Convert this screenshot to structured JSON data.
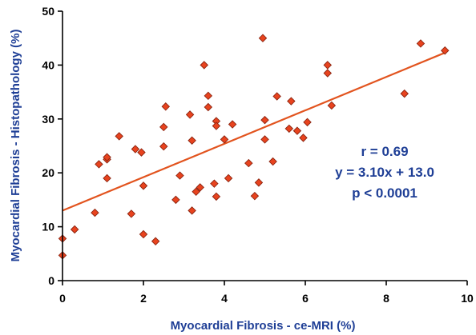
{
  "chart_data": {
    "type": "scatter",
    "title": "",
    "xlabel": "Myocardial Fibrosis - ce-MRI (%)",
    "ylabel": "Myocardial Fibrosis - Histopathology (%)",
    "xlim": [
      0,
      10
    ],
    "ylim": [
      0,
      50
    ],
    "x_ticks": [
      0,
      2,
      4,
      6,
      8,
      10
    ],
    "y_ticks": [
      0,
      10,
      20,
      30,
      40,
      50
    ],
    "grid": false,
    "series": [
      {
        "points": [
          [
            0.0,
            4.7
          ],
          [
            0.0,
            7.8
          ],
          [
            0.3,
            9.5
          ],
          [
            0.8,
            12.6
          ],
          [
            0.9,
            21.6
          ],
          [
            1.1,
            22.5
          ],
          [
            1.1,
            22.9
          ],
          [
            1.1,
            19.0
          ],
          [
            1.4,
            26.8
          ],
          [
            1.7,
            12.4
          ],
          [
            1.8,
            24.4
          ],
          [
            1.95,
            23.8
          ],
          [
            2.0,
            17.6
          ],
          [
            2.0,
            8.6
          ],
          [
            2.3,
            7.3
          ],
          [
            2.5,
            24.9
          ],
          [
            2.5,
            28.5
          ],
          [
            2.55,
            32.3
          ],
          [
            2.8,
            15.0
          ],
          [
            2.9,
            19.5
          ],
          [
            3.15,
            30.8
          ],
          [
            3.2,
            26.0
          ],
          [
            3.2,
            13.0
          ],
          [
            3.3,
            16.5
          ],
          [
            3.4,
            17.3
          ],
          [
            3.5,
            40.0
          ],
          [
            3.6,
            32.2
          ],
          [
            3.6,
            34.3
          ],
          [
            3.75,
            18.0
          ],
          [
            3.8,
            29.6
          ],
          [
            3.8,
            28.7
          ],
          [
            3.8,
            15.6
          ],
          [
            4.0,
            26.2
          ],
          [
            4.1,
            19.0
          ],
          [
            4.2,
            29.0
          ],
          [
            4.6,
            21.8
          ],
          [
            4.75,
            15.7
          ],
          [
            4.85,
            18.2
          ],
          [
            4.95,
            45.0
          ],
          [
            5.0,
            29.8
          ],
          [
            5.0,
            26.2
          ],
          [
            5.2,
            22.1
          ],
          [
            5.3,
            34.2
          ],
          [
            5.6,
            28.2
          ],
          [
            5.65,
            33.3
          ],
          [
            5.8,
            27.8
          ],
          [
            5.95,
            26.5
          ],
          [
            6.05,
            29.4
          ],
          [
            6.55,
            40.0
          ],
          [
            6.55,
            38.5
          ],
          [
            6.65,
            32.5
          ],
          [
            8.45,
            34.7
          ],
          [
            8.85,
            44.0
          ],
          [
            9.45,
            42.7
          ]
        ]
      }
    ],
    "regression": {
      "slope": 3.1,
      "intercept": 13.0,
      "x_range": [
        0,
        9.45
      ]
    },
    "annotations": [
      "r = 0.69",
      "y = 3.10x + 13.0",
      "p < 0.0001"
    ],
    "colors": {
      "marker_fill": "#e8431e",
      "marker_stroke": "#8a2410",
      "fit_line": "#e2541f",
      "axis": "#000000",
      "label": "#1f3f96",
      "annotation": "#1f3f96"
    }
  }
}
